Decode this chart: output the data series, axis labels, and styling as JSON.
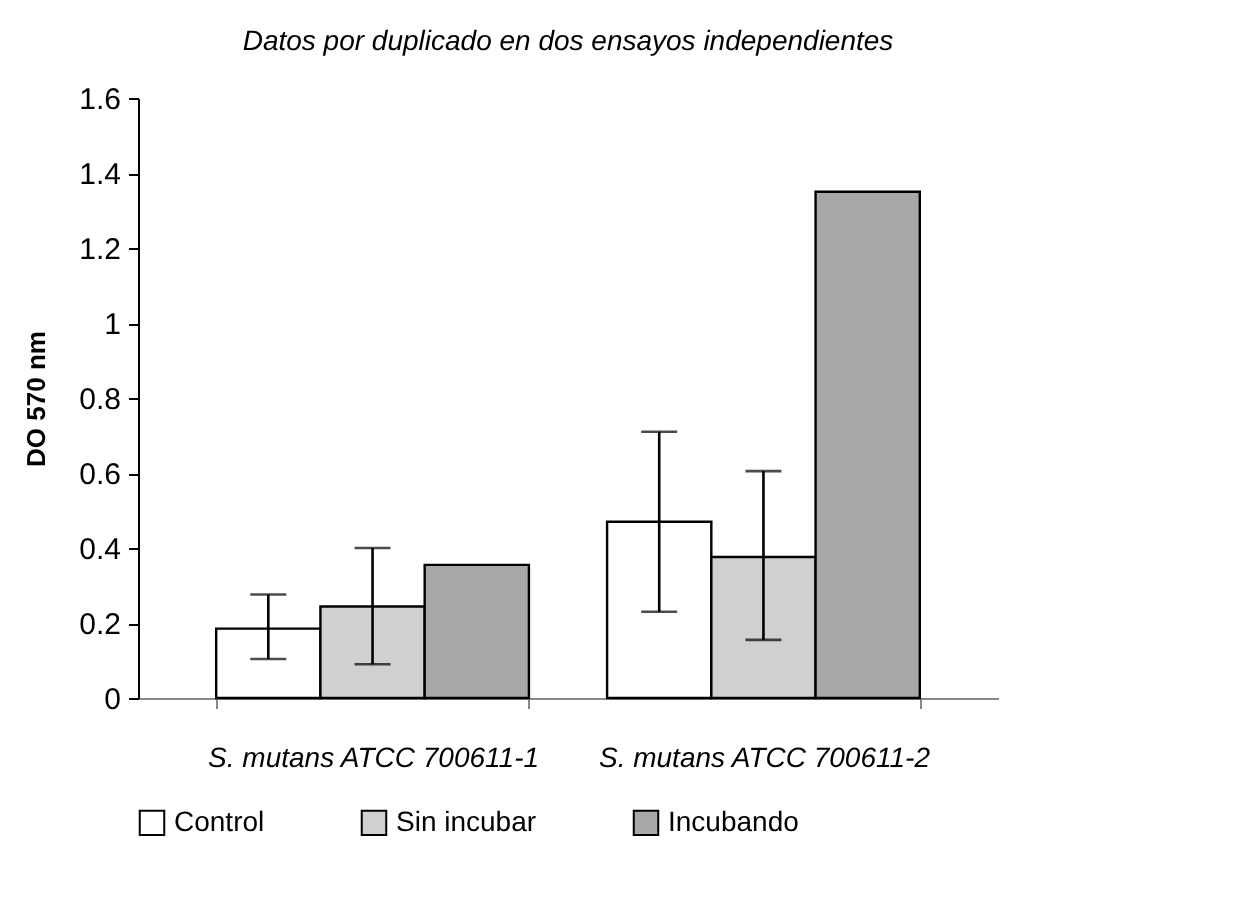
{
  "chart_data": {
    "type": "bar",
    "title": "Datos por duplicado en dos ensayos independientes",
    "ylabel": "DO 570 nm",
    "categories": [
      "S. mutans ATCC 700611-1",
      "S. mutans ATCC 700611-2"
    ],
    "series": [
      {
        "name": "Control",
        "color": "#ffffff",
        "values": [
          0.185,
          0.47
        ],
        "errors": [
          [
            0.104,
            0.276
          ],
          [
            0.23,
            0.71
          ]
        ]
      },
      {
        "name": "Sin incubar",
        "color": "#d0d0d0",
        "values": [
          0.244,
          0.376
        ],
        "errors": [
          [
            0.09,
            0.4
          ],
          [
            0.155,
            0.605
          ]
        ]
      },
      {
        "name": "Incubando",
        "color": "#a8a8a8",
        "values": [
          0.355,
          1.35
        ],
        "errors": [
          null,
          null
        ]
      }
    ],
    "ylim": [
      0,
      1.6
    ],
    "yticks": [
      0,
      0.2,
      0.4,
      0.6,
      0.8,
      1,
      1.2,
      1.4,
      1.6
    ],
    "grid": false,
    "legend": "bottom"
  }
}
